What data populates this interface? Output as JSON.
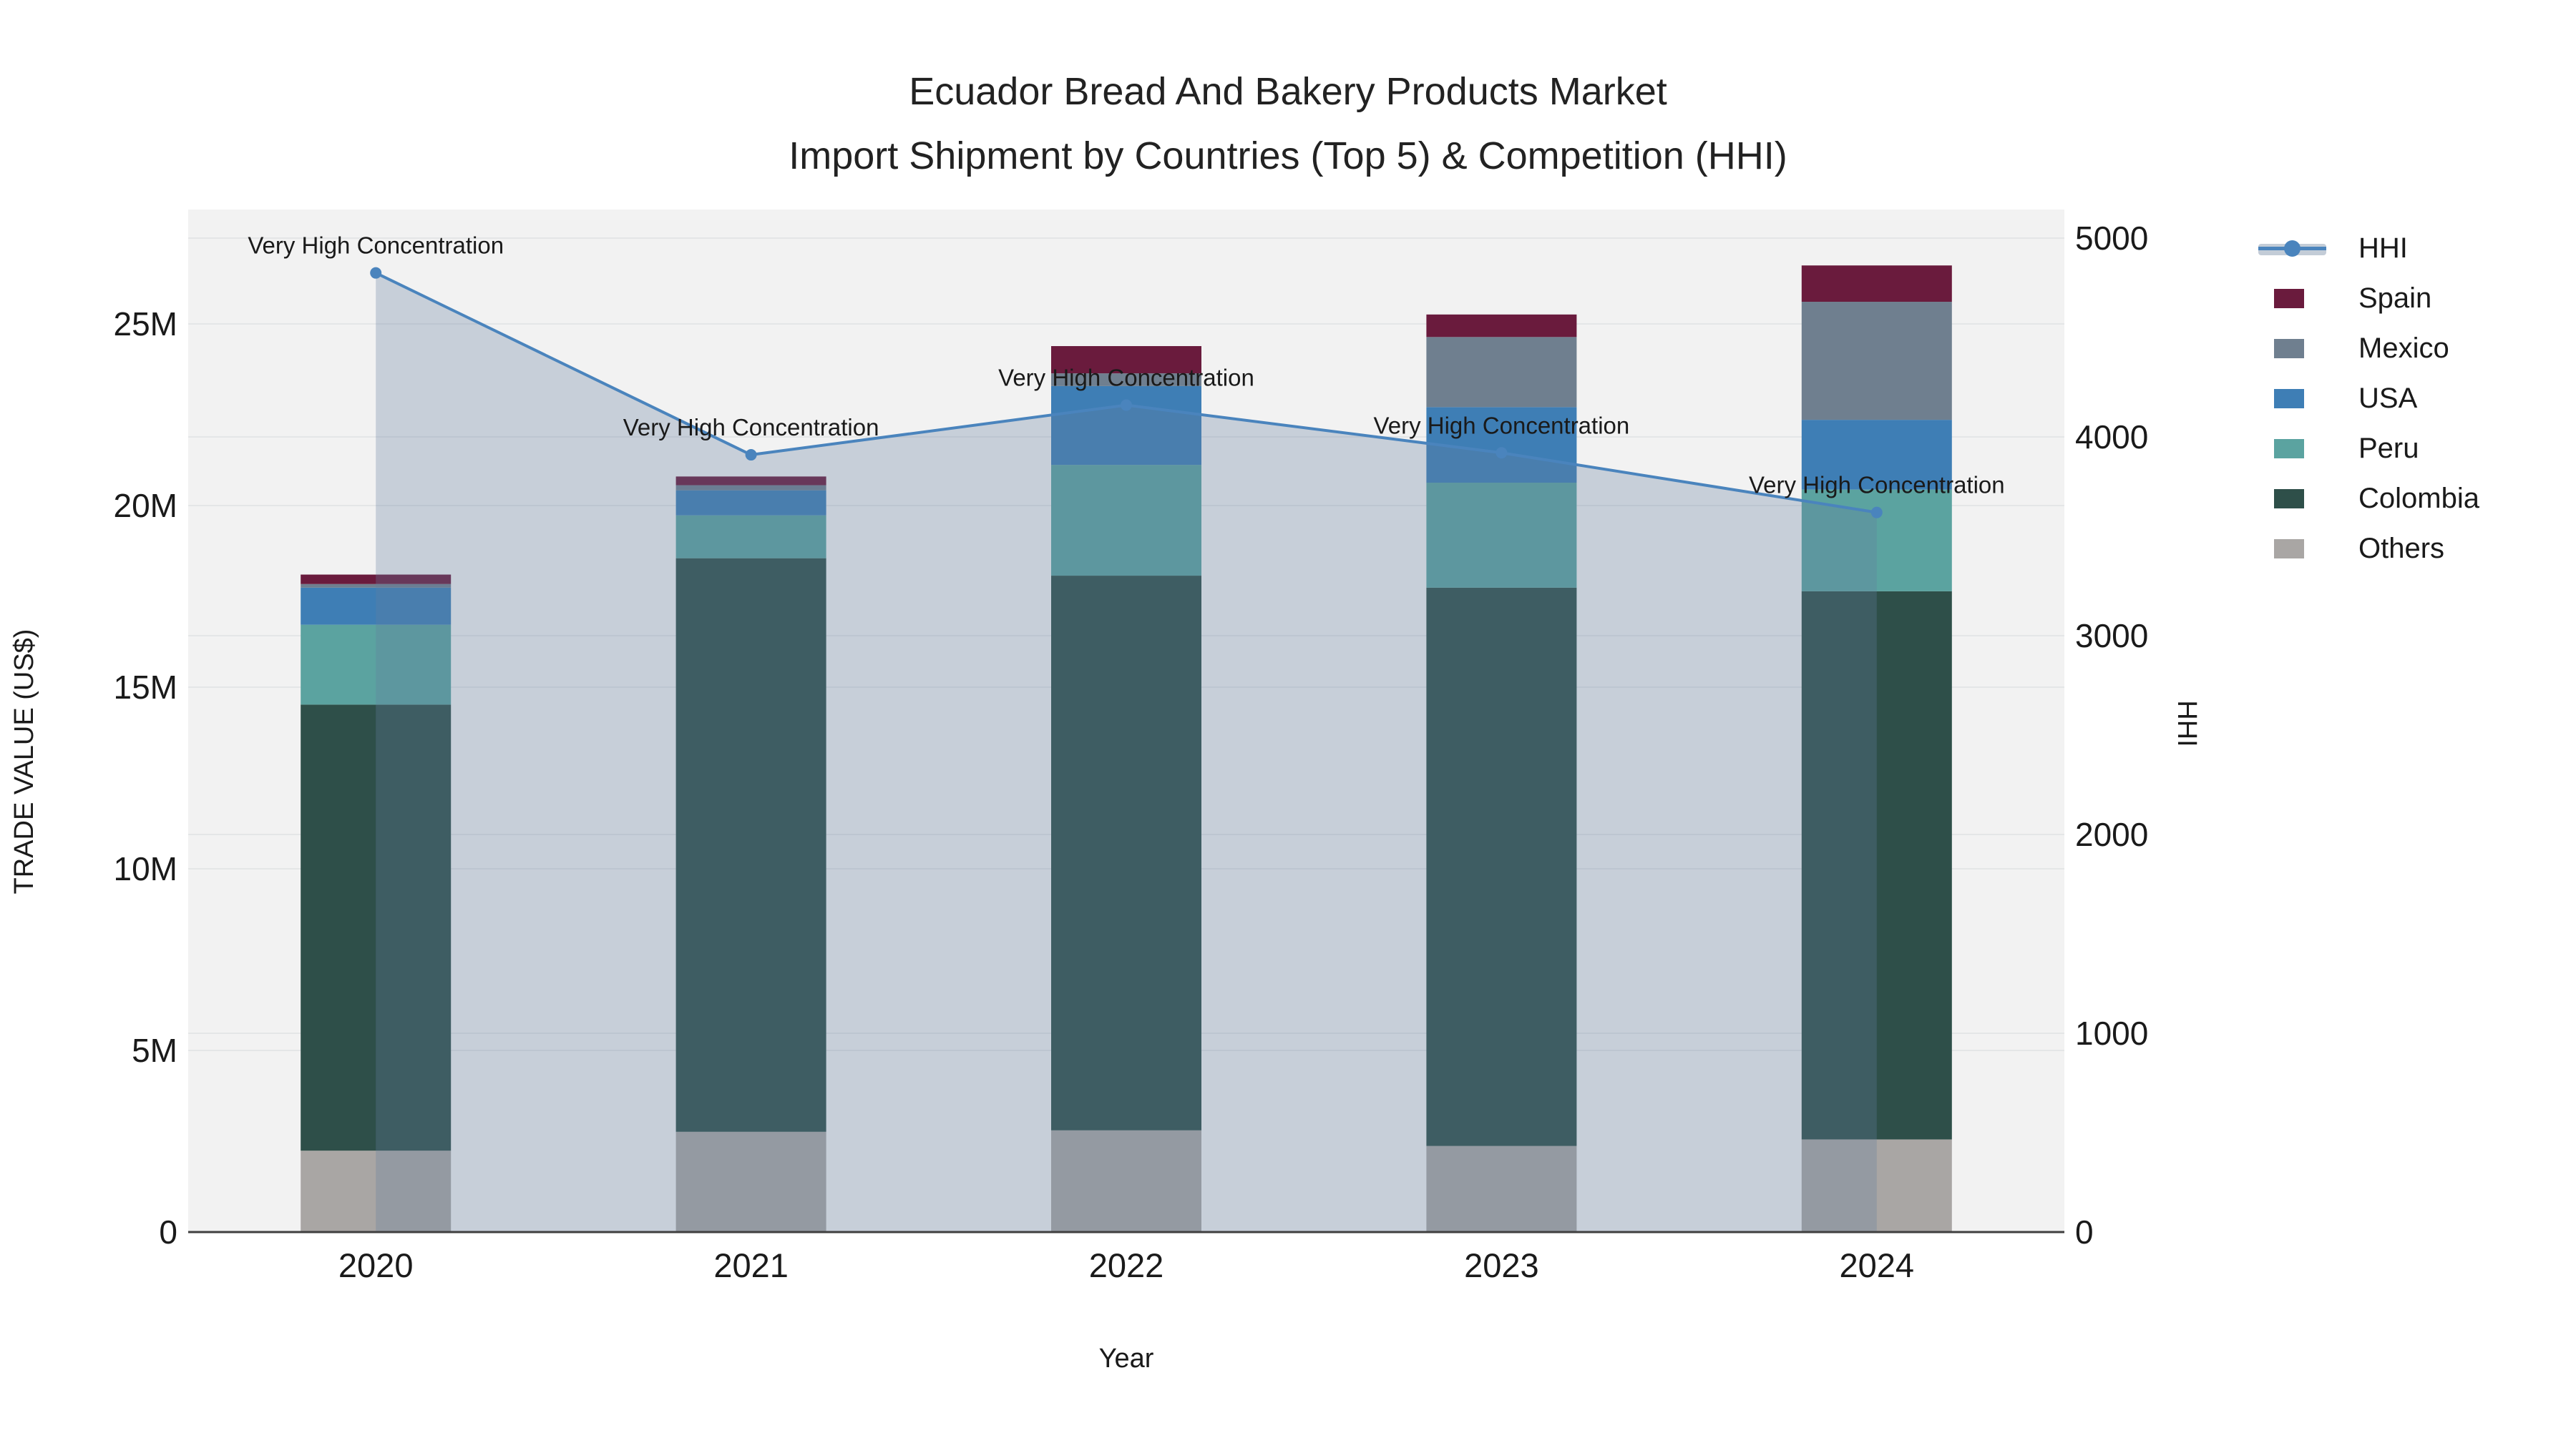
{
  "title": {
    "line1": "Ecuador Bread And Bakery Products Market",
    "line2": "Import Shipment by Countries (Top 5) & Competition (HHI)"
  },
  "chart_data": {
    "type": "bar",
    "subtype": "stacked-bars-with-dual-axis-line",
    "categories": [
      "2020",
      "2021",
      "2022",
      "2023",
      "2024"
    ],
    "series": [
      {
        "name": "Others",
        "color": "#A9A6A4",
        "values": [
          2.24,
          2.76,
          2.8,
          2.37,
          2.55
        ]
      },
      {
        "name": "Colombia",
        "color": "#2E4F49",
        "values": [
          12.28,
          15.79,
          15.27,
          15.37,
          15.09
        ]
      },
      {
        "name": "Peru",
        "color": "#5BA3A0",
        "values": [
          2.2,
          1.18,
          3.05,
          2.89,
          2.8
        ]
      },
      {
        "name": "USA",
        "color": "#3E7EB5",
        "values": [
          1.02,
          0.69,
          2.17,
          2.08,
          1.92
        ]
      },
      {
        "name": "Mexico",
        "color": "#6F7F8F",
        "values": [
          0.1,
          0.14,
          0.35,
          1.93,
          3.25
        ]
      },
      {
        "name": "Spain",
        "color": "#6A1B3D",
        "values": [
          0.26,
          0.24,
          0.75,
          0.62,
          1.0
        ]
      }
    ],
    "bar_totals_millions": [
      18.1,
      20.8,
      24.39,
      25.26,
      26.61
    ],
    "line_series": {
      "name": "HHI",
      "color": "#4A84BD",
      "area_fill": "rgba(99,125,160,0.30)",
      "values": [
        4825,
        3910,
        4160,
        3920,
        3620
      ]
    },
    "annotations": [
      "Very High Concentration",
      "Very High Concentration",
      "Very High Concentration",
      "Very High Concentration",
      "Very High Concentration"
    ],
    "xlabel": "Year",
    "ylabel_left": "TRADE VALUE (US$)",
    "ylabel_right": "HHI",
    "yaxis_left": {
      "tick_labels": [
        "0",
        "5M",
        "10M",
        "15M",
        "20M",
        "25M"
      ],
      "tick_values": [
        0,
        5,
        10,
        15,
        20,
        25
      ],
      "range_max_millions": 28.15
    },
    "yaxis_right": {
      "tick_labels": [
        "0",
        "1000",
        "2000",
        "3000",
        "4000",
        "5000"
      ],
      "tick_values": [
        0,
        1000,
        2000,
        3000,
        4000,
        5000
      ],
      "range_max": 5144
    },
    "legend": {
      "items": [
        {
          "label": "HHI",
          "type": "line",
          "color": "#4A84BD"
        },
        {
          "label": "Spain",
          "type": "box",
          "color": "#6A1B3D"
        },
        {
          "label": "Mexico",
          "type": "box",
          "color": "#6F7F8F"
        },
        {
          "label": "USA",
          "type": "box",
          "color": "#3E7EB5"
        },
        {
          "label": "Peru",
          "type": "box",
          "color": "#5BA3A0"
        },
        {
          "label": "Colombia",
          "type": "box",
          "color": "#2E4F49"
        },
        {
          "label": "Others",
          "type": "box",
          "color": "#A9A6A4"
        }
      ]
    },
    "style": {
      "plot_bg": "#F2F2F2",
      "grid_color": "#E4E6E7",
      "axis_line_color": "#3F3F3F",
      "text_color": "#1a1a1a"
    }
  }
}
